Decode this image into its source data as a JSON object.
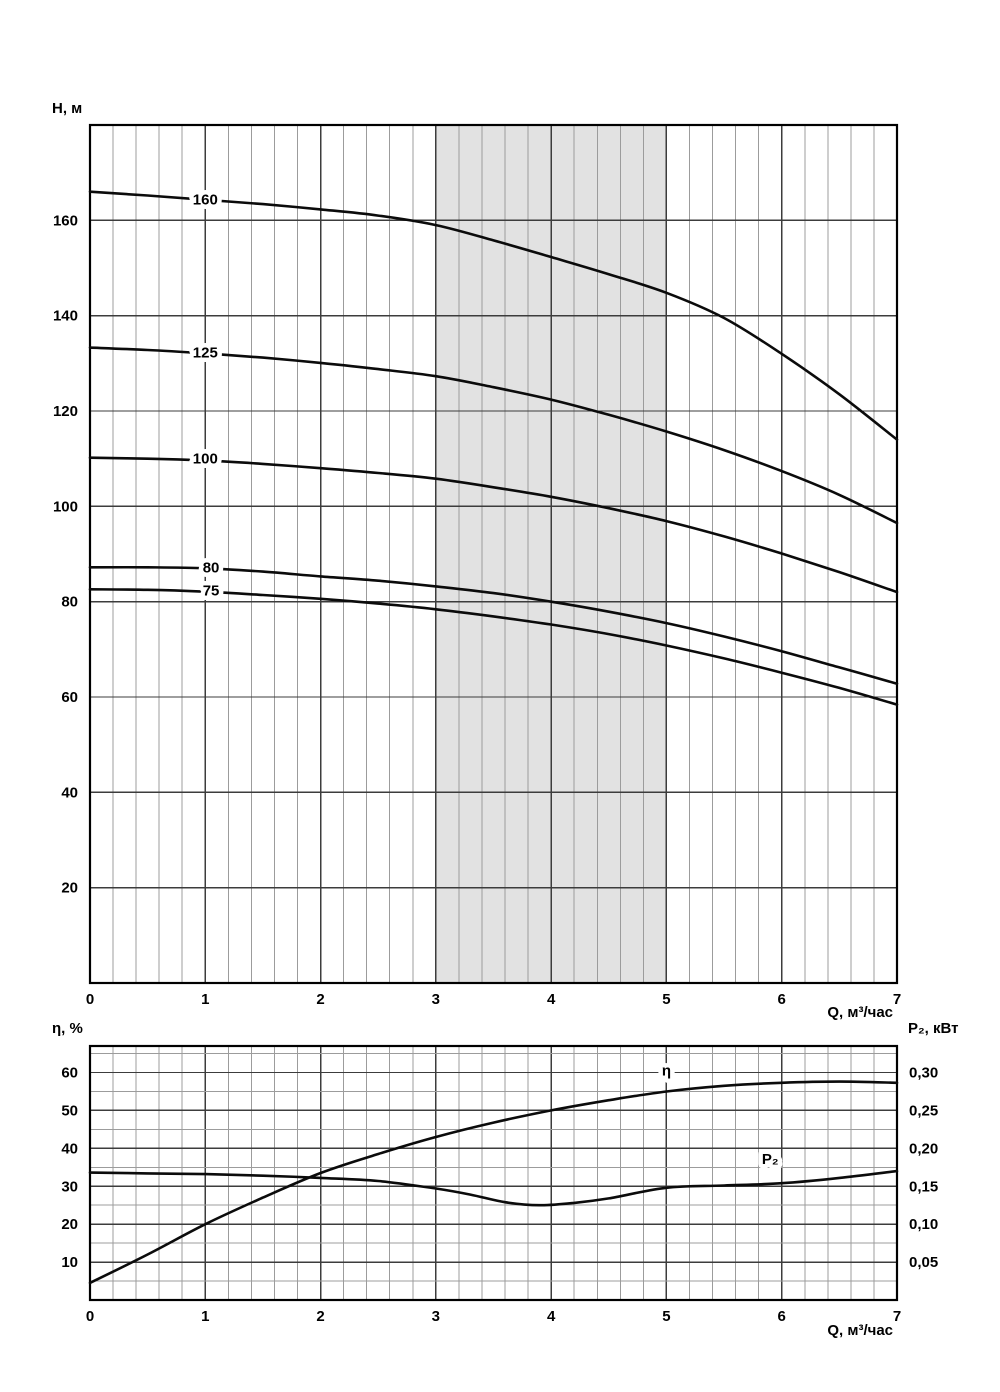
{
  "figure": {
    "background": "#ffffff",
    "curve_color": "#0b0b0b",
    "band_color": "#e2e2e2",
    "grid_minor_color": "#9c9c9c",
    "grid_major_color": "#3c3c3c"
  },
  "chart_data": [
    {
      "type": "line",
      "title": "",
      "xlabel": "Q, м³/час",
      "ylabel": "H, м",
      "x_range": [
        0,
        7
      ],
      "y_range": [
        0,
        180
      ],
      "x_major_step": 1,
      "x_minor_step": 0.2,
      "grid": true,
      "legend_position": "on-curve-labels",
      "x_tick_labels": [
        "0",
        "1",
        "2",
        "3",
        "4",
        "5",
        "6",
        "7"
      ],
      "y_ticks": [
        20,
        40,
        60,
        80,
        100,
        120,
        140,
        160
      ],
      "y_tick_labels": [
        "20",
        "40",
        "60",
        "80",
        "100",
        "120",
        "140",
        "160"
      ],
      "band": {
        "x_from": 3,
        "x_to": 5,
        "color": "#e2e2e2"
      },
      "series": [
        {
          "name": "160",
          "x": [
            0,
            0.5,
            1,
            1.5,
            2,
            2.5,
            3,
            3.5,
            4,
            4.5,
            5,
            5.5,
            6,
            6.5,
            7
          ],
          "y": [
            166,
            165.2,
            164.3,
            163.4,
            162.3,
            161,
            159,
            155.8,
            152.3,
            148.7,
            144.8,
            139.5,
            132,
            123.5,
            114
          ],
          "label": {
            "text": "160",
            "x": 1.0,
            "y": 164.4
          }
        },
        {
          "name": "125",
          "x": [
            0,
            0.5,
            1,
            1.5,
            2,
            2.5,
            3,
            3.5,
            4,
            4.5,
            5,
            5.5,
            6,
            6.5,
            7
          ],
          "y": [
            133.3,
            132.8,
            132.1,
            131.2,
            130.1,
            128.8,
            127.3,
            125,
            122.4,
            119.2,
            115.7,
            111.8,
            107.4,
            102.4,
            96.5
          ],
          "label": {
            "text": "125",
            "x": 1.0,
            "y": 132.3
          }
        },
        {
          "name": "100",
          "x": [
            0,
            0.5,
            1,
            1.5,
            2,
            2.5,
            3,
            3.5,
            4,
            4.5,
            5,
            5.5,
            6,
            6.5,
            7
          ],
          "y": [
            110.2,
            110,
            109.6,
            108.9,
            108,
            107,
            105.8,
            104,
            102,
            99.6,
            96.9,
            93.7,
            90.1,
            86.2,
            82
          ],
          "label": {
            "text": "100",
            "x": 1.0,
            "y": 110
          }
        },
        {
          "name": "80",
          "x": [
            0,
            0.5,
            1,
            1.5,
            2,
            2.5,
            3,
            3.5,
            4,
            4.5,
            5,
            5.5,
            6,
            6.5,
            7
          ],
          "y": [
            87.2,
            87.2,
            87,
            86.3,
            85.3,
            84.4,
            83.2,
            81.8,
            80,
            77.9,
            75.5,
            72.7,
            69.6,
            66.2,
            62.8
          ],
          "label": {
            "text": "80",
            "x": 1.05,
            "y": 87.2
          }
        },
        {
          "name": "75",
          "x": [
            0,
            0.5,
            1,
            1.5,
            2,
            2.5,
            3,
            3.5,
            4,
            4.5,
            5,
            5.5,
            6,
            6.5,
            7
          ],
          "y": [
            82.6,
            82.5,
            82.1,
            81.4,
            80.6,
            79.6,
            78.4,
            76.9,
            75.2,
            73.2,
            70.8,
            68.1,
            65.1,
            61.9,
            58.4
          ],
          "label": {
            "text": "75",
            "x": 1.05,
            "y": 82.3
          }
        }
      ]
    },
    {
      "type": "line",
      "title": "",
      "xlabel": "Q, м³/час",
      "ylabel_left": "η, %",
      "ylabel_right": "P₂, кВт",
      "x_range": [
        0,
        7
      ],
      "y_left_range": [
        0,
        67
      ],
      "y_right_range": [
        0,
        0.335
      ],
      "x_major_step": 1,
      "x_minor_step": 0.2,
      "y_minor_step": 5,
      "grid": true,
      "x_tick_labels": [
        "0",
        "1",
        "2",
        "3",
        "4",
        "5",
        "6",
        "7"
      ],
      "y_left_ticks": [
        10,
        20,
        30,
        40,
        50,
        60
      ],
      "y_left_tick_labels": [
        "10",
        "20",
        "30",
        "40",
        "50",
        "60"
      ],
      "y_right_ticks": [
        0.05,
        0.1,
        0.15,
        0.2,
        0.25,
        0.3
      ],
      "y_right_tick_labels": [
        "0,05",
        "0,10",
        "0,15",
        "0,20",
        "0,25",
        "0,30"
      ],
      "series": [
        {
          "name": "eta",
          "axis": "left",
          "x": [
            0,
            0.5,
            1,
            1.5,
            2,
            2.5,
            3,
            3.5,
            4,
            4.5,
            5,
            5.5,
            6,
            6.5,
            7
          ],
          "y": [
            4.5,
            12,
            20,
            27,
            33.5,
            38.5,
            43,
            46.8,
            50,
            52.7,
            55,
            56.5,
            57.3,
            57.6,
            57.3
          ],
          "label": {
            "text": "η",
            "x": 5.0,
            "y": 60.5
          }
        },
        {
          "name": "P2",
          "axis": "right",
          "x": [
            0,
            0.5,
            1,
            1.5,
            2,
            2.5,
            3,
            3.3,
            3.6,
            3.9,
            4.2,
            4.5,
            5,
            5.5,
            6,
            6.5,
            7
          ],
          "y": [
            0.168,
            0.167,
            0.166,
            0.164,
            0.161,
            0.157,
            0.147,
            0.139,
            0.129,
            0.125,
            0.128,
            0.134,
            0.148,
            0.151,
            0.154,
            0.161,
            0.17
          ],
          "label": {
            "text": "P₂",
            "x": 5.9,
            "y": 0.186
          }
        }
      ]
    }
  ]
}
